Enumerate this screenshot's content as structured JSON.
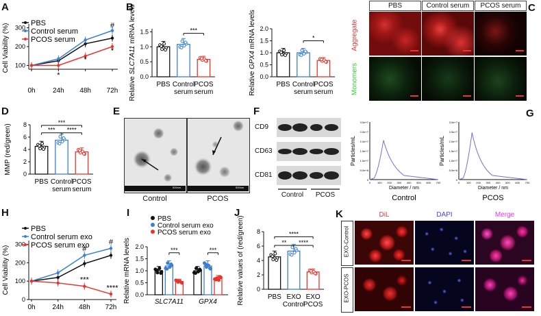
{
  "panels": {
    "A": "A",
    "B": "B",
    "C": "C",
    "D": "D",
    "E": "E",
    "F": "F",
    "G": "G",
    "H": "H",
    "I": "I",
    "J": "J",
    "K": "K"
  },
  "colors": {
    "pbs": "#111111",
    "control": "#3b7fd1",
    "pcos": "#e8352b"
  },
  "sig": {
    "one": "*",
    "two": "**",
    "three": "***",
    "four": "****",
    "hash": "#"
  },
  "chart_data": [
    {
      "panel": "A",
      "type": "line",
      "ylabel": "Cell Viability (%)",
      "x": [
        "0h",
        "24h",
        "48h",
        "72h"
      ],
      "yticks": [
        "100",
        "200",
        "300"
      ],
      "ylim": [
        80,
        320
      ],
      "series": [
        {
          "name": "PBS",
          "values": [
            100,
            125,
            215,
            245
          ]
        },
        {
          "name": "Control serum",
          "values": [
            100,
            135,
            235,
            285
          ]
        },
        {
          "name": "PCOS serum",
          "values": [
            100,
            100,
            150,
            200
          ]
        }
      ]
    },
    {
      "panel": "B1",
      "type": "bar",
      "ylabel": "Relative SLC7A11 mRNA levels",
      "categories": [
        "PBS",
        "Control serum",
        "PCOS serum"
      ],
      "values": [
        1.0,
        1.08,
        0.58
      ],
      "yticks": [
        "0.0",
        "0.5",
        "1.0",
        "1.5"
      ],
      "ylim": [
        0,
        1.6
      ]
    },
    {
      "panel": "B2",
      "type": "bar",
      "ylabel": "Relative GPX4 mRNA levels",
      "categories": [
        "PBS",
        "Control serum",
        "PCOS serum"
      ],
      "values": [
        1.0,
        1.0,
        0.68
      ],
      "yticks": [
        "0.0",
        "0.5",
        "1.0",
        "1.5",
        "2.0"
      ],
      "ylim": [
        0,
        2.0
      ]
    },
    {
      "panel": "D",
      "type": "bar",
      "ylabel": "MMP (red/green)",
      "categories": [
        "PBS",
        "Control serum",
        "PCOS serum"
      ],
      "values": [
        4.5,
        5.5,
        3.6
      ],
      "yticks": [
        "0",
        "2",
        "4",
        "6",
        "8"
      ],
      "ylim": [
        0,
        8
      ]
    },
    {
      "panel": "G",
      "type": "line",
      "ylabel": "Particles/mL",
      "xlabel": "Diameter / nm",
      "xticks": [
        "0",
        "100",
        "200",
        "300",
        "400",
        "500",
        "600",
        "700"
      ],
      "yticks": [
        "0",
        "5.0e+6",
        "1.0e+7",
        "1.5e+7",
        "2.0e+7",
        "2.5e+7",
        "3.0e+7"
      ],
      "series": [
        {
          "name": "Control",
          "peak_x": 140,
          "peak_y": 20500000.0
        },
        {
          "name": "PCOS",
          "peak_x": 135,
          "peak_y": 24500000.0
        }
      ]
    },
    {
      "panel": "H",
      "type": "line",
      "ylabel": "Cell Viability (%)",
      "x": [
        "0h",
        "24h",
        "48h",
        "72h"
      ],
      "yticks": [
        "0",
        "100",
        "200",
        "300"
      ],
      "ylim": [
        0,
        320
      ],
      "series": [
        {
          "name": "PBS",
          "values": [
            100,
            120,
            195,
            240
          ]
        },
        {
          "name": "Control serum exo",
          "values": [
            100,
            145,
            240,
            278
          ]
        },
        {
          "name": "PCOS serum exo",
          "values": [
            100,
            90,
            72,
            30
          ]
        }
      ]
    },
    {
      "panel": "I",
      "type": "bar",
      "ylabel": "Relative mRNA levels",
      "categories": [
        "SLC7A11",
        "GPX4"
      ],
      "yticks": [
        "0.0",
        "0.5",
        "1.0",
        "1.5",
        "2.0"
      ],
      "ylim": [
        0,
        2.0
      ],
      "series": [
        {
          "name": "PBS",
          "values": [
            1.0,
            1.0
          ]
        },
        {
          "name": "Control serum exo",
          "values": [
            1.2,
            1.2
          ]
        },
        {
          "name": "PCOS serum exo",
          "values": [
            0.55,
            0.68
          ]
        }
      ]
    },
    {
      "panel": "J",
      "type": "bar",
      "ylabel": "Relative values of (red/green)",
      "categories": [
        "PBS",
        "EXO Control",
        "EXO PCOS"
      ],
      "values": [
        4.5,
        5.3,
        2.4
      ],
      "yticks": [
        "0",
        "2",
        "4",
        "6",
        "8"
      ],
      "ylim": [
        0,
        8
      ]
    }
  ],
  "A": {
    "legend": [
      "PBS",
      "Control serum",
      "PCOS serum"
    ],
    "hash": "#",
    "stars": [
      "*",
      "*",
      "*"
    ]
  },
  "B": {
    "sig1": "***",
    "sig2": "*",
    "t1a": "Relative ",
    "t1b": "SLC7A11",
    "t1c": " mRNA levels",
    "t2a": "Relative ",
    "t2b": "GPX4",
    "t2c": " mRNA levels"
  },
  "C": {
    "cols": [
      "PBS",
      "Control serum",
      "PCOS serum"
    ],
    "rows": [
      "Aggregate",
      "Monomers"
    ]
  },
  "D": {
    "sigs": [
      "***",
      "***",
      "****"
    ]
  },
  "E": {
    "labels": [
      "Control",
      "PCOS"
    ],
    "scale": "500nm"
  },
  "F": {
    "bands": [
      "CD9",
      "CD63",
      "CD81"
    ],
    "groups": [
      "Control",
      "PCOS"
    ]
  },
  "G": {
    "labels": [
      "Control",
      "PCOS"
    ]
  },
  "H": {
    "legend": [
      "PBS",
      "Control serum exo",
      "PCOS serum exo"
    ],
    "sigs": [
      "***",
      "****"
    ],
    "hash": "#"
  },
  "I": {
    "legend": [
      "PBS",
      "Control serum exo",
      "PCOS serum exo"
    ],
    "sigs": [
      "***",
      "***"
    ]
  },
  "J": {
    "sigs": [
      "****",
      "**",
      "****"
    ],
    "cat": [
      "PBS",
      "EXO",
      "Control",
      "EXO",
      "PCOS"
    ]
  },
  "K": {
    "cols": [
      "DiL",
      "DAPI",
      "Merge"
    ],
    "rows": [
      "EXO-Control",
      "EXO-PCOS"
    ]
  }
}
